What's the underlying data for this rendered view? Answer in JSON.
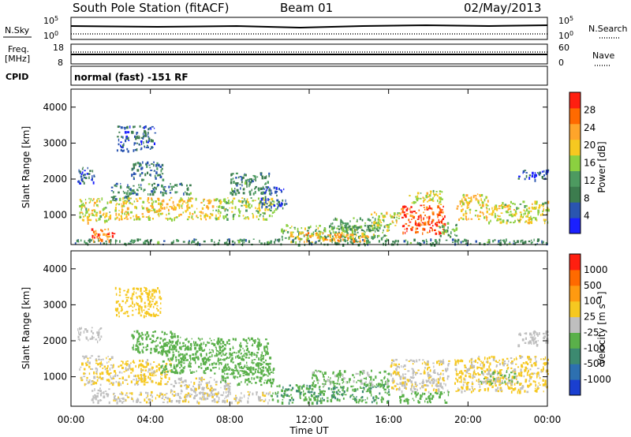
{
  "header": {
    "station": "South Pole Station (fitACF)",
    "beam": "Beam 01",
    "date": "02/May/2013"
  },
  "top_panels": {
    "nsky_label": "N.Sky",
    "nsky_tick_high": "10^5",
    "nsky_tick_low": "10^0",
    "nsearch_label": "N.Search",
    "nsearch_tick_high": "10^5",
    "nsearch_tick_low": "10^0",
    "freq_label_1": "Freq.",
    "freq_label_2": "[MHz]",
    "freq_tick_high": "18",
    "freq_tick_low": "8",
    "nave_label": "Nave",
    "nave_tick_high": "60",
    "nave_tick_low": "0",
    "cpid_label": "CPID",
    "cpid_text": "normal (fast) -151 RF"
  },
  "chart_data": [
    {
      "type": "heatmap",
      "name": "power",
      "ylabel": "Slant Range [km]",
      "xlabel": "",
      "ylim": [
        180,
        4500
      ],
      "yticks": [
        "1000",
        "2000",
        "3000",
        "4000"
      ],
      "xlim_hours": [
        0,
        24
      ],
      "colorbar": {
        "label": "Power [dB]",
        "ticks": [
          "4",
          "8",
          "12",
          "16",
          "20",
          "24",
          "28"
        ],
        "range": [
          0,
          32
        ],
        "colors": [
          "#1a20ff",
          "#2a55b0",
          "#3c7c4e",
          "#4d9a60",
          "#8bd040",
          "#f6c820",
          "#ffa52a",
          "#ff6a00",
          "#ff1f10"
        ]
      },
      "regions": [
        {
          "t0": 0.3,
          "t1": 1.2,
          "r0": 1900,
          "r1": 2350,
          "v": 6
        },
        {
          "t0": 0.4,
          "t1": 2.0,
          "r0": 800,
          "r1": 1500,
          "v": 18
        },
        {
          "t0": 1.0,
          "t1": 2.2,
          "r0": 300,
          "r1": 650,
          "v": 26
        },
        {
          "t0": 2.0,
          "t1": 3.0,
          "r0": 1400,
          "r1": 1900,
          "v": 10
        },
        {
          "t0": 2.2,
          "t1": 7.2,
          "r0": 900,
          "r1": 1500,
          "v": 20
        },
        {
          "t0": 2.3,
          "t1": 4.2,
          "r0": 2800,
          "r1": 3500,
          "v": 6
        },
        {
          "t0": 3.0,
          "t1": 4.6,
          "r0": 2000,
          "r1": 2500,
          "v": 8
        },
        {
          "t0": 3.0,
          "t1": 6.0,
          "r0": 1600,
          "r1": 1900,
          "v": 10
        },
        {
          "t0": 7.2,
          "t1": 10.3,
          "r0": 900,
          "r1": 1500,
          "v": 16
        },
        {
          "t0": 8.0,
          "t1": 10.0,
          "r0": 1600,
          "r1": 2200,
          "v": 10
        },
        {
          "t0": 9.5,
          "t1": 10.8,
          "r0": 1200,
          "r1": 1800,
          "v": 6
        },
        {
          "t0": 10.5,
          "t1": 16.0,
          "r0": 350,
          "r1": 750,
          "v": 14
        },
        {
          "t0": 11.0,
          "t1": 15.0,
          "r0": 250,
          "r1": 550,
          "v": 22
        },
        {
          "t0": 13.0,
          "t1": 15.5,
          "r0": 550,
          "r1": 950,
          "v": 12
        },
        {
          "t0": 15.0,
          "t1": 16.5,
          "r0": 700,
          "r1": 1100,
          "v": 18
        },
        {
          "t0": 16.5,
          "t1": 18.8,
          "r0": 500,
          "r1": 1300,
          "v": 28
        },
        {
          "t0": 17.0,
          "t1": 18.7,
          "r0": 1300,
          "r1": 1700,
          "v": 18
        },
        {
          "t0": 18.5,
          "t1": 19.4,
          "r0": 400,
          "r1": 800,
          "v": 12
        },
        {
          "t0": 19.4,
          "t1": 21.0,
          "r0": 900,
          "r1": 1600,
          "v": 20
        },
        {
          "t0": 21.0,
          "t1": 24.0,
          "r0": 800,
          "r1": 1400,
          "v": 18
        },
        {
          "t0": 22.5,
          "t1": 24.0,
          "r0": 2000,
          "r1": 2300,
          "v": 6
        },
        {
          "t0": 0.0,
          "t1": 24.0,
          "r0": 200,
          "r1": 350,
          "v": 10
        }
      ]
    },
    {
      "type": "heatmap",
      "name": "velocity",
      "ylabel": "Slant Range [km]",
      "xlabel": "Time UT",
      "ylim": [
        180,
        4500
      ],
      "yticks": [
        "1000",
        "2000",
        "3000",
        "4000"
      ],
      "xticks": [
        "00:00",
        "04:00",
        "08:00",
        "12:00",
        "16:00",
        "20:00",
        "00:00"
      ],
      "xlim_hours": [
        0,
        24
      ],
      "colorbar": {
        "label": "Velocity [m s⁻¹]",
        "ticks": [
          "1000",
          "500",
          "100",
          "25",
          "-25",
          "-100",
          "-500",
          "-1000"
        ],
        "range": [
          -1000,
          1000
        ],
        "colors": [
          "#1a3fd0",
          "#2d70b0",
          "#3c8a70",
          "#5ab04a",
          "#bfbfbf",
          "#f6c820",
          "#ff9a10",
          "#ff6a00",
          "#ff1f10"
        ]
      },
      "regions": [
        {
          "t0": 0.3,
          "t1": 1.5,
          "r0": 2000,
          "r1": 2400,
          "v": 0
        },
        {
          "t0": 0.4,
          "t1": 2.2,
          "r0": 800,
          "r1": 1600,
          "v": 120
        },
        {
          "t0": 1.0,
          "t1": 2.0,
          "r0": 300,
          "r1": 700,
          "v": 0
        },
        {
          "t0": 2.2,
          "t1": 4.5,
          "r0": 2700,
          "r1": 3500,
          "v": 200
        },
        {
          "t0": 2.2,
          "t1": 5.0,
          "r0": 800,
          "r1": 1500,
          "v": 150
        },
        {
          "t0": 4.5,
          "t1": 10.0,
          "r0": 1100,
          "r1": 2100,
          "v": -250
        },
        {
          "t0": 5.0,
          "t1": 8.0,
          "r0": 500,
          "r1": 1000,
          "v": 60
        },
        {
          "t0": 7.5,
          "t1": 10.2,
          "r0": 800,
          "r1": 1400,
          "v": -200
        },
        {
          "t0": 3.0,
          "t1": 5.5,
          "r0": 1700,
          "r1": 2300,
          "v": -200
        },
        {
          "t0": 2.0,
          "t1": 10.0,
          "r0": 300,
          "r1": 600,
          "v": 80
        },
        {
          "t0": 10.0,
          "t1": 16.0,
          "r0": 300,
          "r1": 800,
          "v": -300
        },
        {
          "t0": 12.0,
          "t1": 16.0,
          "r0": 800,
          "r1": 1200,
          "v": -150
        },
        {
          "t0": 16.0,
          "t1": 19.0,
          "r0": 600,
          "r1": 1500,
          "v": 80
        },
        {
          "t0": 16.5,
          "t1": 19.0,
          "r0": 300,
          "r1": 600,
          "v": -200
        },
        {
          "t0": 19.3,
          "t1": 24.0,
          "r0": 600,
          "r1": 1600,
          "v": 150
        },
        {
          "t0": 20.5,
          "t1": 22.5,
          "r0": 800,
          "r1": 1200,
          "v": -120
        },
        {
          "t0": 22.5,
          "t1": 24.0,
          "r0": 1900,
          "r1": 2300,
          "v": 0
        }
      ]
    }
  ]
}
